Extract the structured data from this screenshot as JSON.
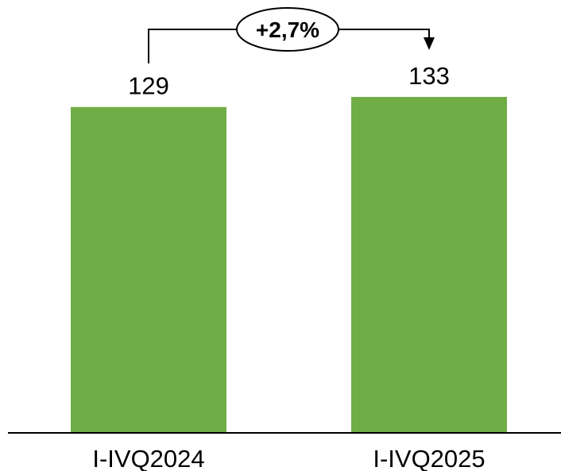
{
  "chart_data": {
    "type": "bar",
    "categories": [
      "I-IVQ2024",
      "I-IVQ2025"
    ],
    "values": [
      129,
      133
    ],
    "data_labels": [
      "129",
      "133"
    ],
    "ylim": [
      0,
      133
    ],
    "grid": false,
    "title": "",
    "xlabel": "",
    "ylabel": "",
    "bar_color": "#70ad47",
    "annotation": {
      "text": "+2,7%",
      "from": "I-IVQ2024",
      "to": "I-IVQ2025"
    }
  }
}
